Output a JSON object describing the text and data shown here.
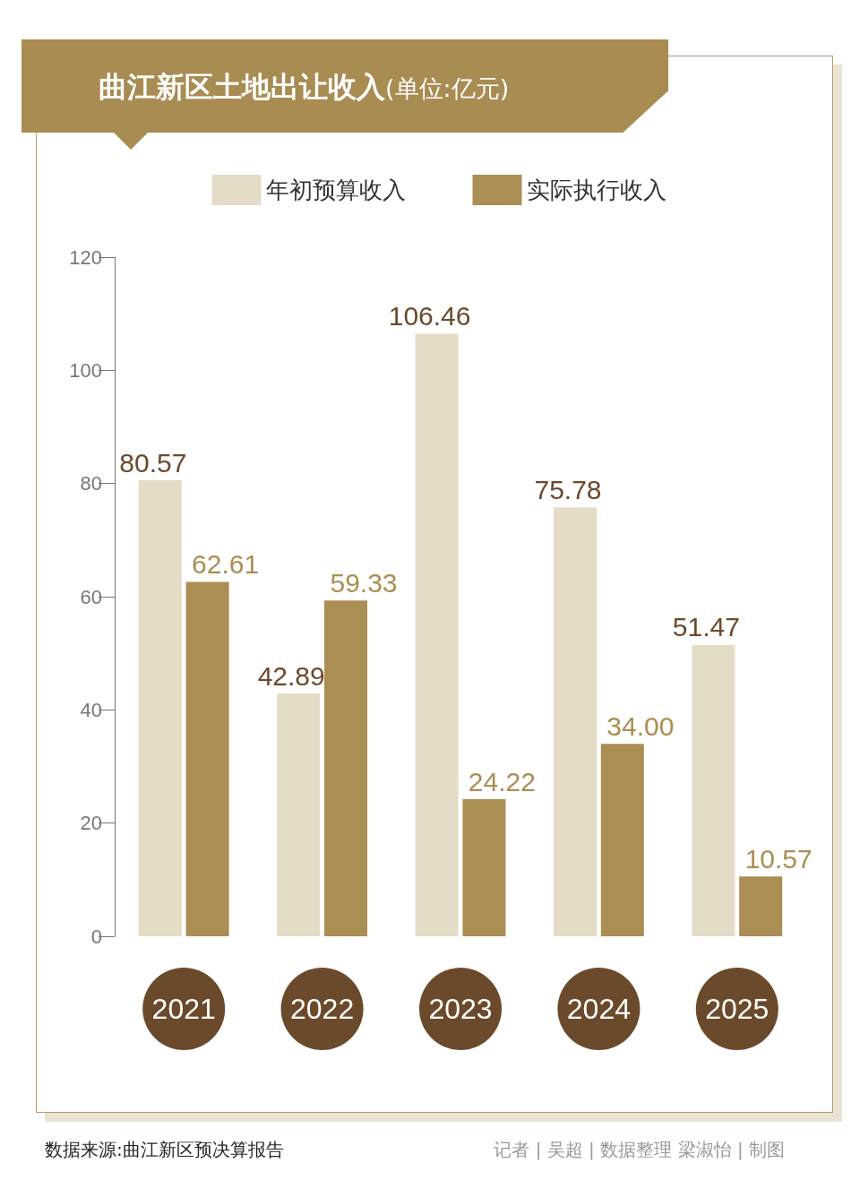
{
  "chart_data": {
    "type": "bar",
    "title": "曲江新区土地出让收入",
    "subtitle": "(单位:亿元)",
    "categories": [
      "2021",
      "2022",
      "2023",
      "2024",
      "2025"
    ],
    "series": [
      {
        "name": "年初预算收入",
        "color": "#e5dcc7",
        "values": [
          80.57,
          42.89,
          106.46,
          75.78,
          51.47
        ],
        "value_labels": [
          "80.57",
          "42.89",
          "106.46",
          "75.78",
          "51.47"
        ]
      },
      {
        "name": "实际执行收入",
        "color": "#ab8e53",
        "values": [
          62.61,
          59.33,
          24.22,
          34.0,
          10.57
        ],
        "value_labels": [
          "62.61",
          "59.33",
          "24.22",
          "34.00",
          "10.57"
        ]
      }
    ],
    "ylim": [
      0,
      120
    ],
    "yticks": [
      0,
      20,
      40,
      60,
      80,
      100,
      120
    ],
    "grid": false,
    "legend": "top",
    "annotations": [
      "数据来源:曲江新区预决算报告",
      "记者 | 吴超 | 数据整理  梁淑怡 | 制图"
    ]
  }
}
